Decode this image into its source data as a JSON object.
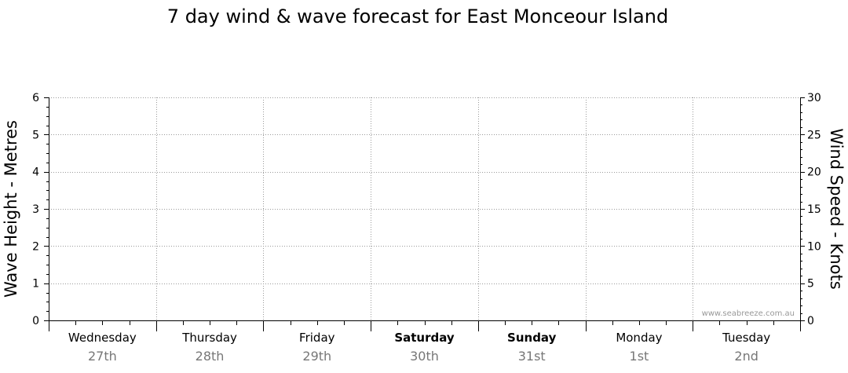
{
  "chart_data": {
    "type": "line",
    "title": "7 day wind & wave forecast for East Monceour Island",
    "ylabel_left": "Wave Height - Metres",
    "ylabel_right": "Wind Speed - Knots",
    "ylim_left": [
      0,
      6
    ],
    "ylim_right": [
      0,
      30
    ],
    "yticks_left": [
      "0",
      "1",
      "2",
      "3",
      "4",
      "5",
      "6"
    ],
    "yticks_right": [
      "0",
      "5",
      "10",
      "15",
      "20",
      "25",
      "30"
    ],
    "days": [
      {
        "name": "Wednesday",
        "date": "27th",
        "bold": false
      },
      {
        "name": "Thursday",
        "date": "28th",
        "bold": false
      },
      {
        "name": "Friday",
        "date": "29th",
        "bold": false
      },
      {
        "name": "Saturday",
        "date": "30th",
        "bold": true
      },
      {
        "name": "Sunday",
        "date": "31st",
        "bold": true
      },
      {
        "name": "Monday",
        "date": "1st",
        "bold": false
      },
      {
        "name": "Tuesday",
        "date": "2nd",
        "bold": false
      }
    ],
    "series": [],
    "grid": true,
    "watermark": "www.seabreeze.com.au"
  }
}
